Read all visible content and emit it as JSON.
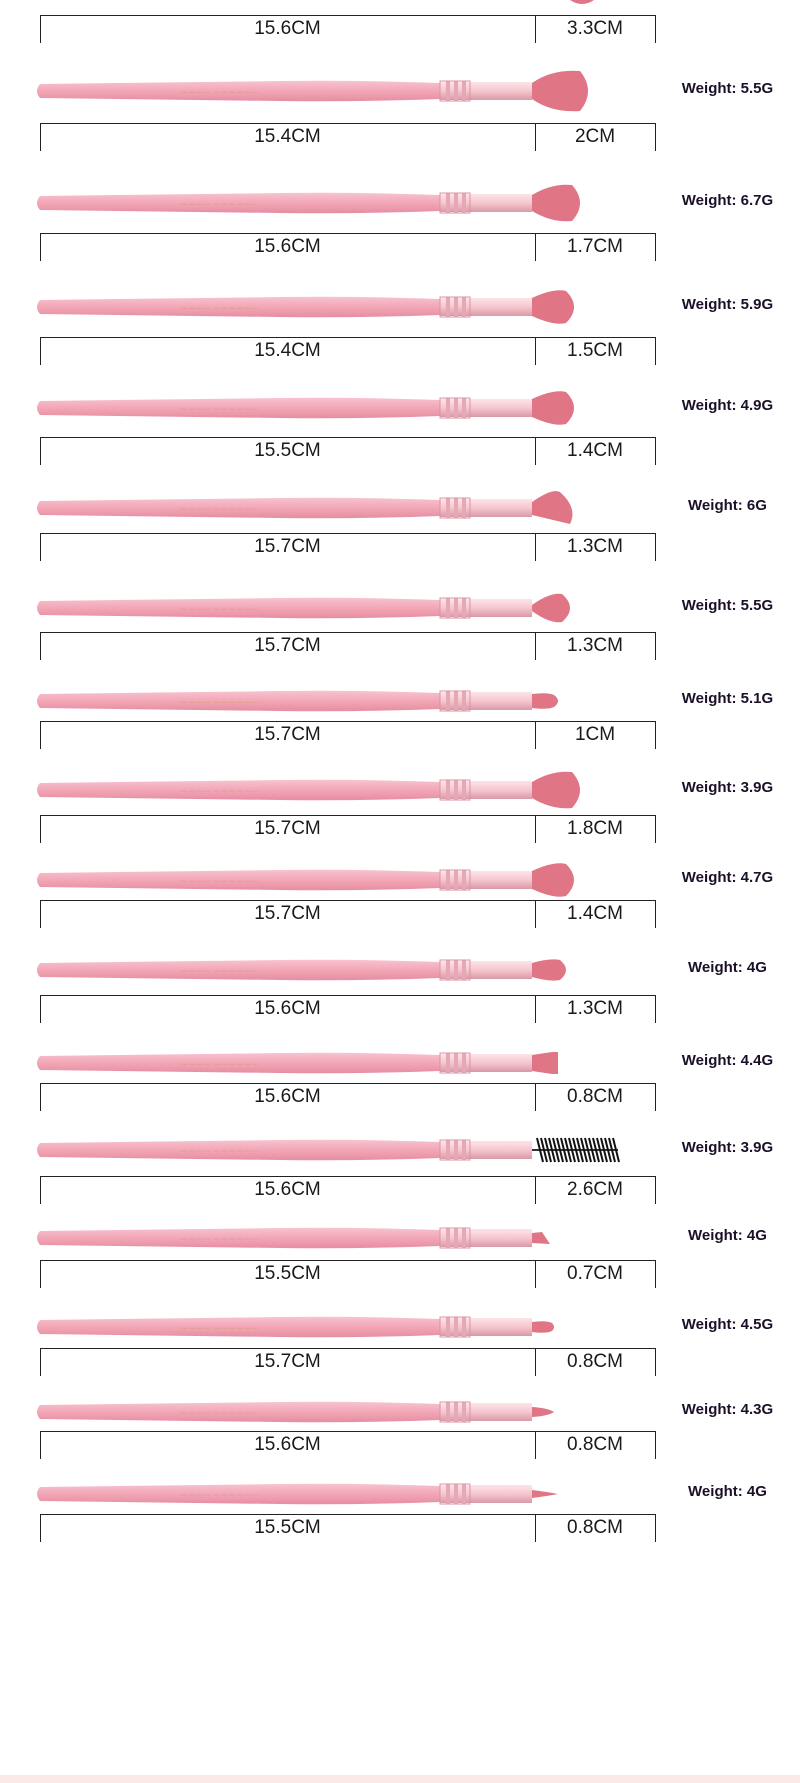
{
  "sheet": {
    "unit_label": "CM",
    "weight_prefix": "Weight: ",
    "colors": {
      "handle": "#f2a6b6",
      "ferrule": "#f6c6cf",
      "bristle": "#e07685",
      "spoolie": "#111111",
      "text": "#1c1028"
    }
  },
  "partial_top": {
    "handle_length": "15.6CM",
    "head_length": "3.3CM"
  },
  "brushes": [
    {
      "head_shape": "large-fluffy",
      "handle_length": "15.4CM",
      "head_length": "2CM",
      "weight": "Weight: 5.5G"
    },
    {
      "head_shape": "fan-fluffy",
      "handle_length": "15.6CM",
      "head_length": "1.7CM",
      "weight": "Weight: 6.7G"
    },
    {
      "head_shape": "round-fluffy",
      "handle_length": "15.4CM",
      "head_length": "1.5CM",
      "weight": "Weight: 5.9G"
    },
    {
      "head_shape": "round-fluffy",
      "handle_length": "15.5CM",
      "head_length": "1.4CM",
      "weight": "Weight: 4.9G"
    },
    {
      "head_shape": "angled-dome",
      "handle_length": "15.7CM",
      "head_length": "1.3CM",
      "weight": "Weight: 6G"
    },
    {
      "head_shape": "tapered-blender",
      "handle_length": "15.7CM",
      "head_length": "1.3CM",
      "weight": "Weight: 5.5G"
    },
    {
      "head_shape": "small-pencil",
      "handle_length": "15.7CM",
      "head_length": "1CM",
      "weight": "Weight: 5.1G"
    },
    {
      "head_shape": "fan-fluffy",
      "handle_length": "15.7CM",
      "head_length": "1.8CM",
      "weight": "Weight: 3.9G"
    },
    {
      "head_shape": "round-fluffy",
      "handle_length": "15.7CM",
      "head_length": "1.4CM",
      "weight": "Weight: 4.7G"
    },
    {
      "head_shape": "round-small",
      "handle_length": "15.6CM",
      "head_length": "1.3CM",
      "weight": "Weight: 4G"
    },
    {
      "head_shape": "flat-square",
      "handle_length": "15.6CM",
      "head_length": "0.8CM",
      "weight": "Weight: 4.4G"
    },
    {
      "head_shape": "spoolie",
      "handle_length": "15.6CM",
      "head_length": "2.6CM",
      "weight": "Weight: 3.9G"
    },
    {
      "head_shape": "angled-flat",
      "handle_length": "15.5CM",
      "head_length": "0.7CM",
      "weight": "Weight: 4G"
    },
    {
      "head_shape": "small-round-liner",
      "handle_length": "15.7CM",
      "head_length": "0.8CM",
      "weight": "Weight: 4.5G"
    },
    {
      "head_shape": "pointed-liner",
      "handle_length": "15.6CM",
      "head_length": "0.8CM",
      "weight": "Weight: 4.3G"
    },
    {
      "head_shape": "fine-liner",
      "handle_length": "15.5CM",
      "head_length": "0.8CM",
      "weight": "Weight: 4G"
    }
  ]
}
